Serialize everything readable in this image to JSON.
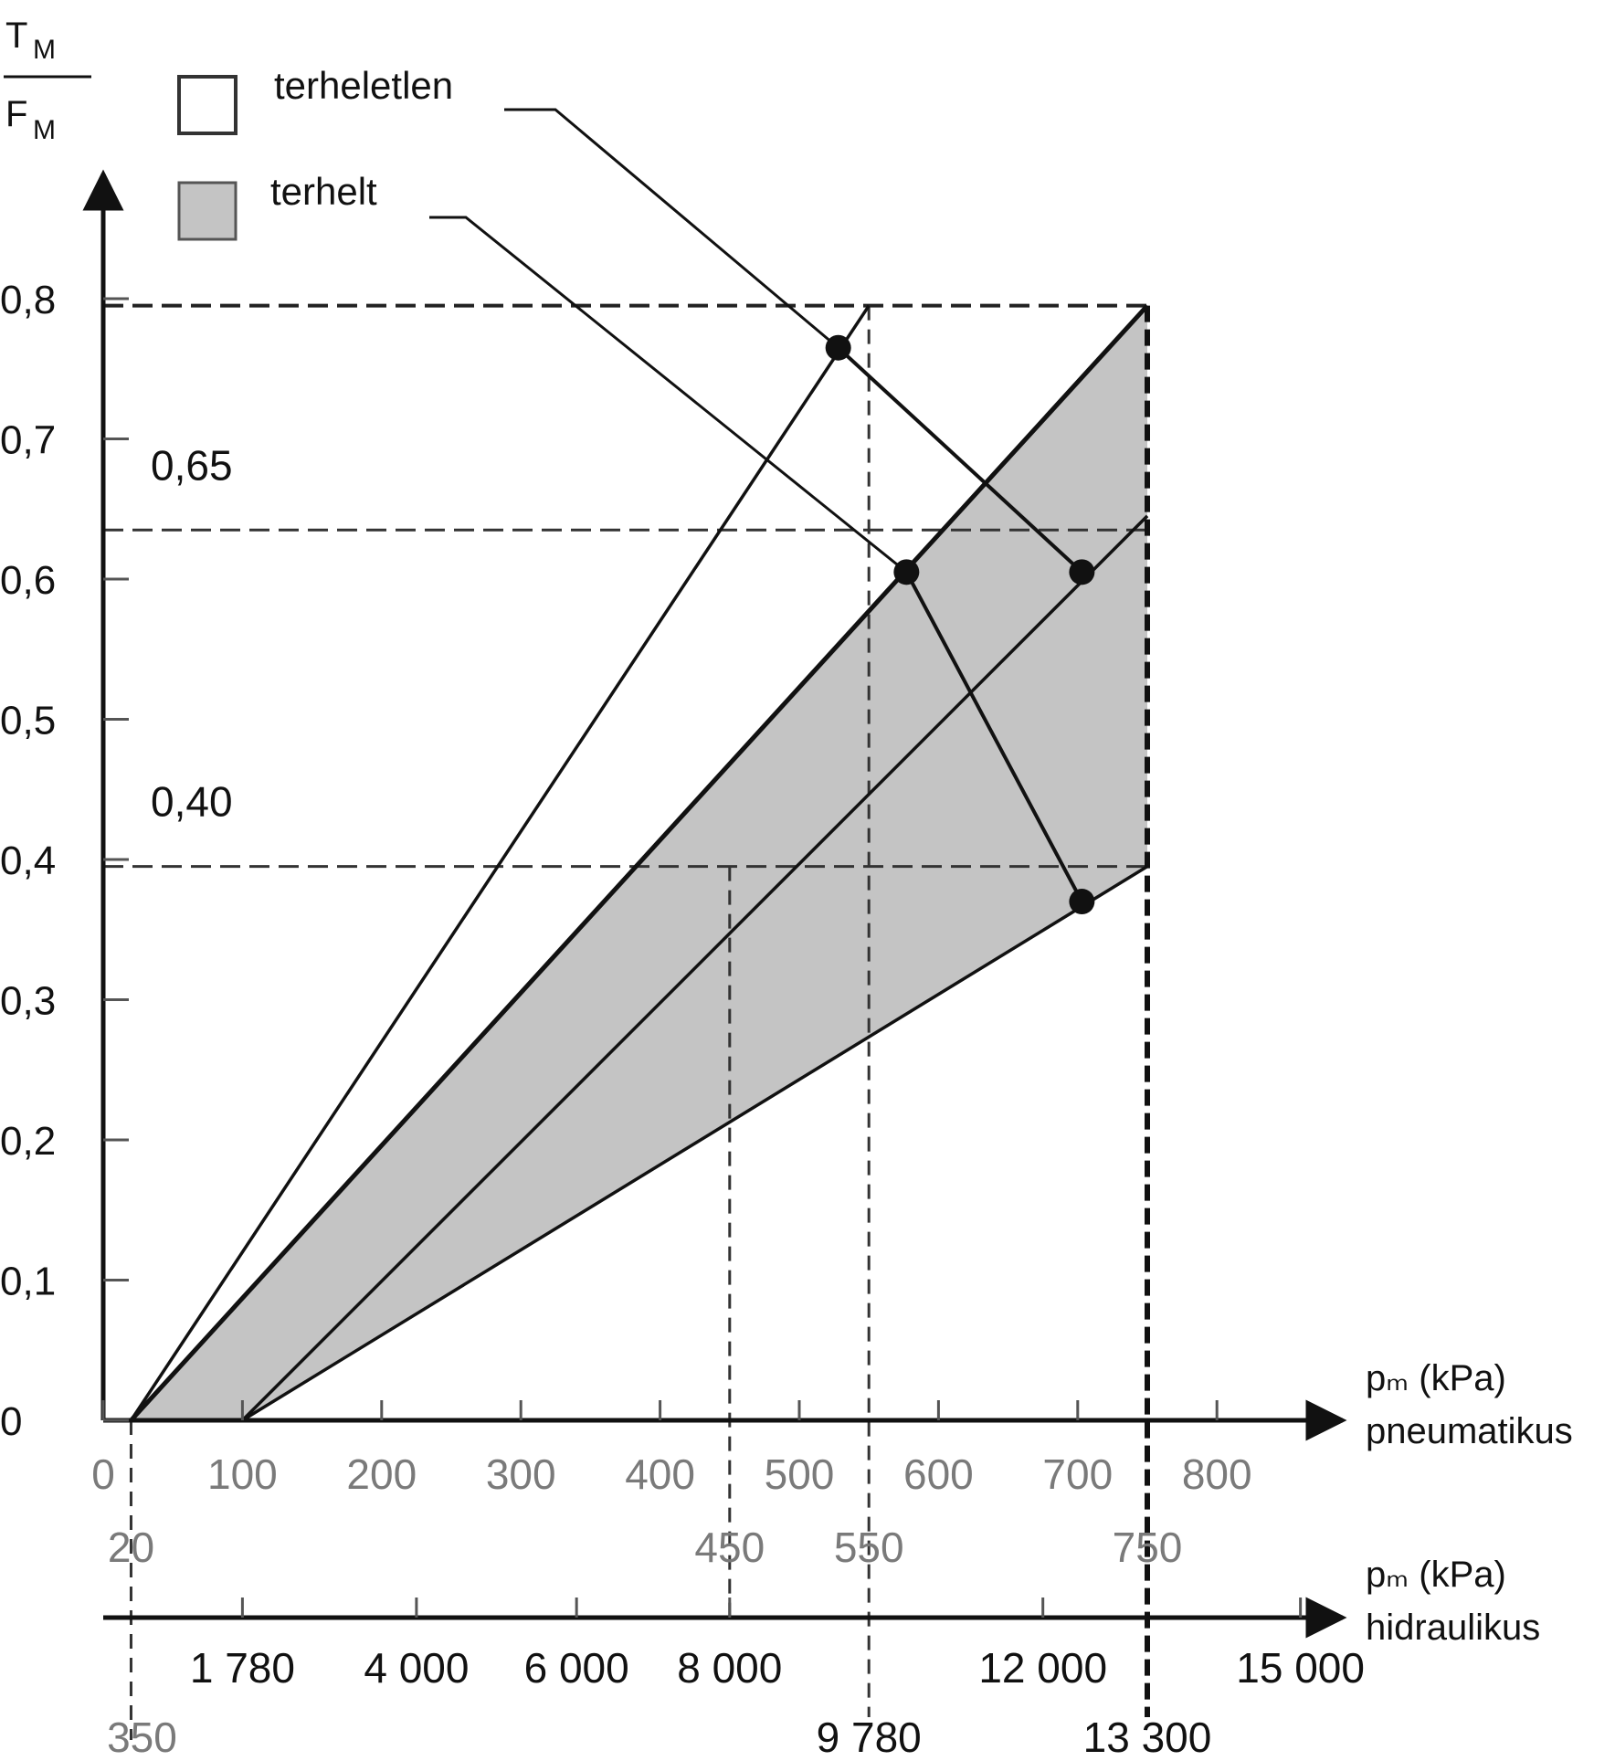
{
  "chart_data": {
    "type": "line",
    "y_axis": {
      "title_top": "T",
      "title_top_sub": "M",
      "title_bottom": "F",
      "title_bottom_sub": "M",
      "ticks": [
        "0",
        "0,1",
        "0,2",
        "0,3",
        "0,4",
        "0,5",
        "0,6",
        "0,7",
        "0,8"
      ],
      "tick_values": [
        0,
        0.1,
        0.2,
        0.3,
        0.4,
        0.5,
        0.6,
        0.7,
        0.8
      ],
      "ylim": [
        0,
        0.8
      ]
    },
    "x_axis_pneumatic": {
      "label_line1": "pₘ (kPa)",
      "label_line2": "pneumatikus",
      "ticks": [
        "0",
        "100",
        "200",
        "300",
        "400",
        "500",
        "600",
        "700",
        "800"
      ],
      "tick_values": [
        0,
        100,
        200,
        300,
        400,
        500,
        600,
        700,
        800
      ],
      "marked_values": [
        "20",
        "450",
        "550",
        "750"
      ],
      "marked_positions": [
        20,
        450,
        550,
        750
      ],
      "xlim": [
        0,
        850
      ]
    },
    "x_axis_hydraulic": {
      "label_line1": "pₘ (kPa)",
      "label_line2": "hidraulikus",
      "ticks_upper": [
        "1 780",
        "4 000",
        "6 000",
        "8 000",
        "12 000",
        "15 000"
      ],
      "ticks_upper_pneumatic_equiv": [
        100,
        225,
        340,
        450,
        675,
        860
      ],
      "ticks_lower": [
        "350",
        "9 780",
        "13 300"
      ],
      "ticks_lower_pneumatic_equiv": [
        20,
        550,
        750
      ]
    },
    "reference_levels": [
      {
        "label": "0,65",
        "value": 0.635
      },
      {
        "label": "0,40",
        "value": 0.395
      }
    ],
    "legend": [
      {
        "label": "terheletlen",
        "fill": "#ffffff"
      },
      {
        "label": "terhelt",
        "fill": "#c4c4c4"
      }
    ],
    "series": [
      {
        "name": "terheletlen",
        "x": [
          20,
          550
        ],
        "y": [
          0,
          0.795
        ]
      },
      {
        "name": "",
        "x": [
          20,
          750
        ],
        "y": [
          0,
          0.795
        ]
      },
      {
        "name": "",
        "x": [
          100,
          750
        ],
        "y": [
          0,
          0.645
        ]
      },
      {
        "name": "",
        "x": [
          100,
          750
        ],
        "y": [
          0,
          0.395
        ]
      }
    ],
    "shaded_region": {
      "label": "terhelt",
      "vertices": [
        [
          20,
          0
        ],
        [
          750,
          0.795
        ],
        [
          750,
          0.395
        ],
        [
          100,
          0
        ]
      ]
    },
    "marked_points": [
      {
        "x": 528,
        "y": 0.765
      },
      {
        "x": 577,
        "y": 0.605
      },
      {
        "x": 703,
        "y": 0.605
      },
      {
        "x": 703,
        "y": 0.37
      }
    ],
    "connector_lines": [
      {
        "legend": "terheletlen",
        "points": [
          [
            528,
            0.765
          ],
          [
            703,
            0.605
          ]
        ]
      },
      {
        "legend": "terhelt",
        "points": [
          [
            577,
            0.605
          ],
          [
            703,
            0.37
          ]
        ]
      }
    ],
    "colors": {
      "shade": "#c4c4c4",
      "line": "#111111",
      "gray_text": "#7a7a7a"
    }
  }
}
